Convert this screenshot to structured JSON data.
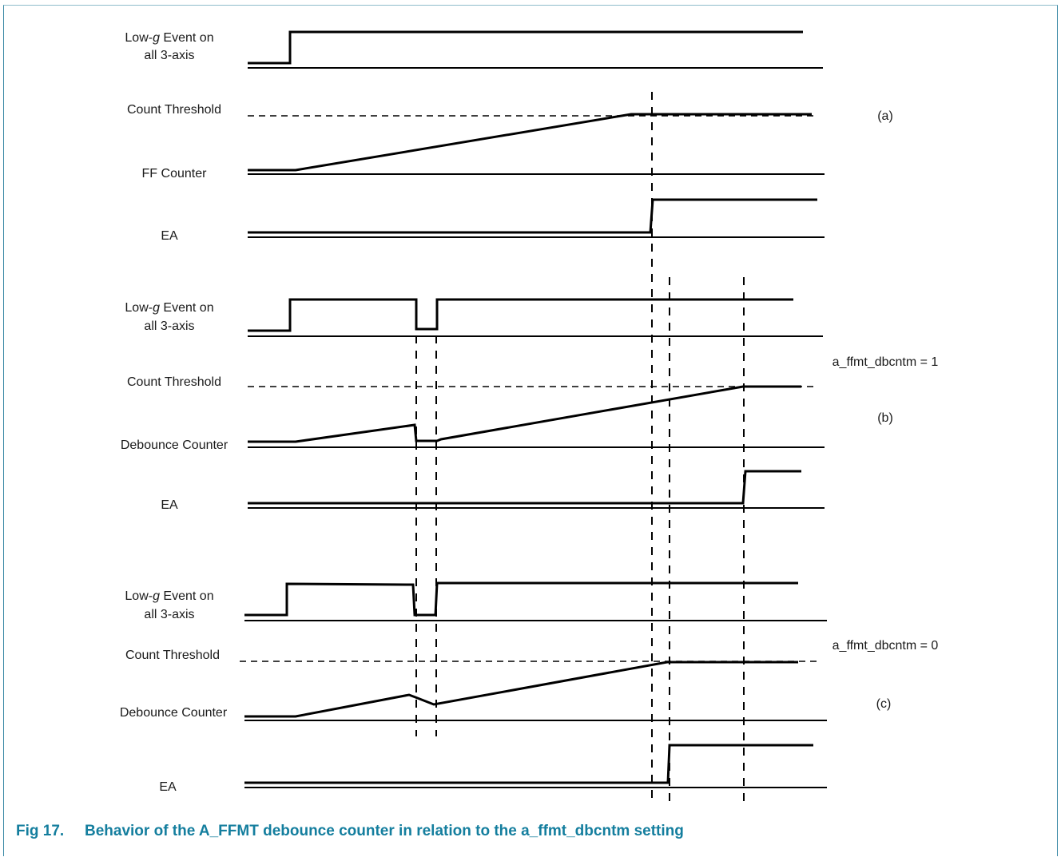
{
  "figure": {
    "caption_number": "Fig 17.",
    "caption_text": "Behavior of the A_FFMT debounce counter in relation to the a_ffmt_dbcntm setting"
  },
  "panels": [
    {
      "tag": "(a)",
      "setting": "",
      "signals": [
        {
          "label_pre": "Low-",
          "label_italic": "g",
          "label_post": " Event on",
          "label_line2": "all 3-axis"
        },
        {
          "label": "Count Threshold"
        },
        {
          "label": "FF Counter"
        },
        {
          "label": "EA"
        }
      ]
    },
    {
      "tag": "(b)",
      "setting": "a_ffmt_dbcntm = 1",
      "signals": [
        {
          "label_pre": "Low-",
          "label_italic": "g",
          "label_post": " Event on",
          "label_line2": "all 3-axis"
        },
        {
          "label": "Count Threshold"
        },
        {
          "label": "Debounce Counter"
        },
        {
          "label": "EA"
        }
      ]
    },
    {
      "tag": "(c)",
      "setting": "a_ffmt_dbcntm = 0",
      "signals": [
        {
          "label_pre": "Low-",
          "label_italic": "g",
          "label_post": " Event on",
          "label_line2": "all 3-axis"
        },
        {
          "label": "Count Threshold"
        },
        {
          "label": "Debounce Counter"
        },
        {
          "label": "EA"
        }
      ]
    }
  ],
  "colors": {
    "caption": "#147e9e",
    "frame": "#3c8aa6",
    "waveform": "#000000"
  }
}
